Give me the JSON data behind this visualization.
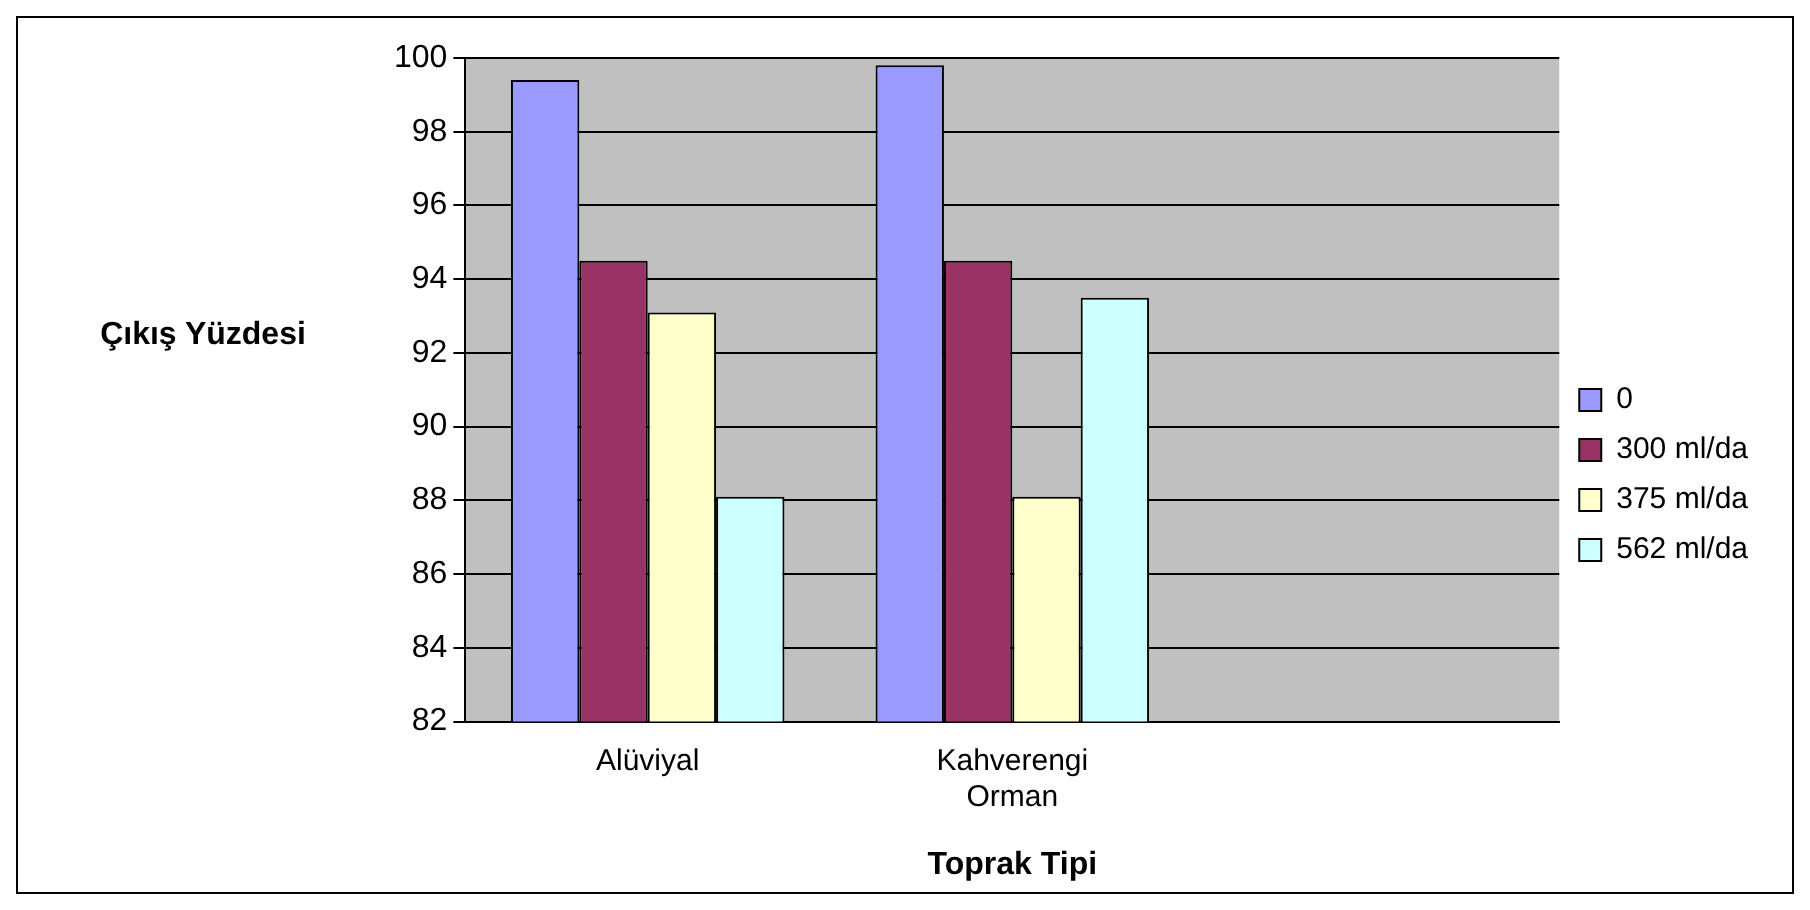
{
  "chart_data": {
    "type": "bar",
    "ylabel": "Çıkış Yüzdesi",
    "xlabel": "Toprak Tipi",
    "categories": [
      "Alüviyal",
      "Kahverengi Orman",
      null
    ],
    "series": [
      {
        "name": "0",
        "color": "#9999ff",
        "values": [
          99.4,
          99.8,
          null
        ]
      },
      {
        "name": "300 ml/da",
        "color": "#993366",
        "values": [
          94.5,
          94.5,
          null
        ]
      },
      {
        "name": "375 ml/da",
        "color": "#ffffcc",
        "values": [
          93.1,
          88.1,
          null
        ]
      },
      {
        "name": "562 ml/da",
        "color": "#ccffff",
        "values": [
          88.1,
          93.5,
          null
        ]
      }
    ],
    "ylim": [
      82,
      100
    ],
    "yticks": [
      82,
      84,
      86,
      88,
      90,
      92,
      94,
      96,
      98,
      100
    ],
    "grid": "y",
    "legend": "right"
  }
}
